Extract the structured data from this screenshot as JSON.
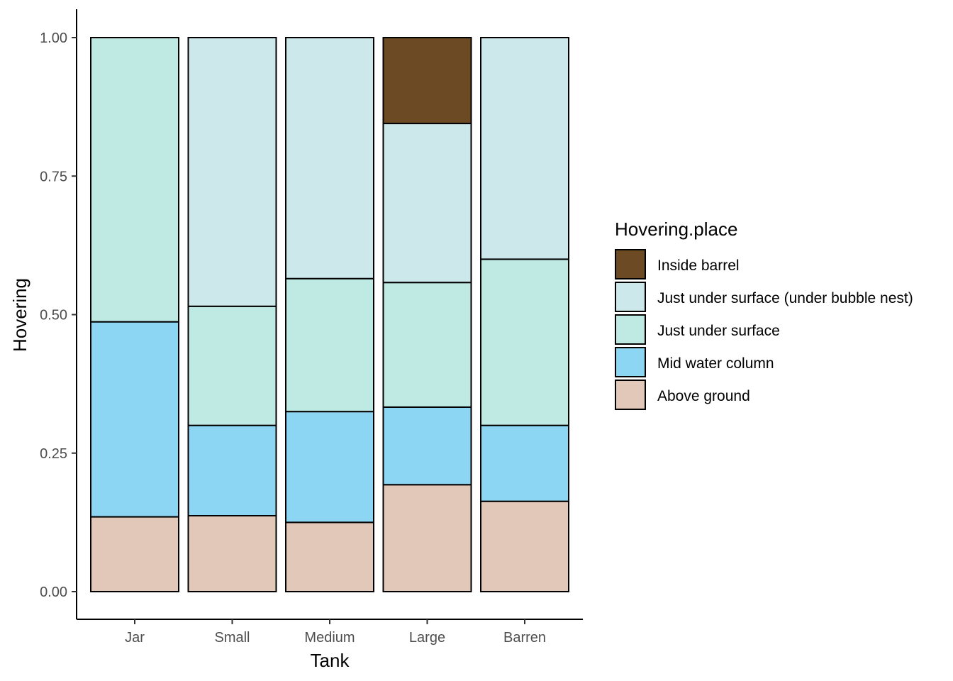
{
  "chart_data": {
    "type": "bar",
    "stacked": true,
    "title": "",
    "xlabel": "Tank",
    "ylabel": "Hovering",
    "ylim": [
      0,
      1
    ],
    "yticks": [
      "0.00",
      "0.25",
      "0.50",
      "0.75",
      "1.00"
    ],
    "ytick_values": [
      0,
      0.25,
      0.5,
      0.75,
      1.0
    ],
    "grid": false,
    "legend_position": "right",
    "legend_title": "Hovering.place",
    "categories": [
      "Jar",
      "Small",
      "Medium",
      "Large",
      "Barren"
    ],
    "series": [
      {
        "name": "Above ground",
        "color": "#E2C8B8",
        "values": [
          0.135,
          0.137,
          0.125,
          0.193,
          0.163
        ]
      },
      {
        "name": "Mid water column",
        "color": "#8CD5F3",
        "values": [
          0.352,
          0.163,
          0.2,
          0.14,
          0.137
        ]
      },
      {
        "name": "Just under surface",
        "color": "#BFE9E3",
        "values": [
          0.513,
          0.215,
          0.24,
          0.225,
          0.3
        ]
      },
      {
        "name": "Just under surface (under bubble nest)",
        "color": "#CCE8EA",
        "values": [
          0.0,
          0.485,
          0.435,
          0.287,
          0.4
        ]
      },
      {
        "name": "Inside barrel",
        "color": "#6B4A24",
        "values": [
          0.0,
          0.0,
          0.0,
          0.155,
          0.0
        ]
      }
    ]
  }
}
